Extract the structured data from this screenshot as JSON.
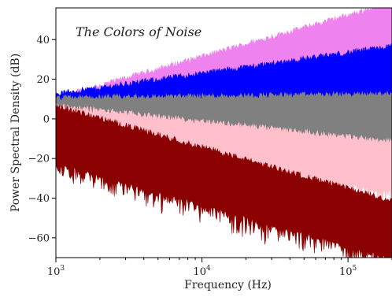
{
  "chart_data": {
    "type": "area",
    "title": "The Colors of Noise",
    "xlabel": "Frequency (Hz)",
    "ylabel": "Power Spectral Density (dB)",
    "x_scale": "log",
    "xlim": [
      1000,
      200000
    ],
    "ylim": [
      -70,
      56
    ],
    "grid": false,
    "x_ticks": [
      {
        "value": 1000,
        "base": "10",
        "exp": "3"
      },
      {
        "value": 10000,
        "base": "10",
        "exp": "4"
      },
      {
        "value": 100000,
        "base": "10",
        "exp": "5"
      }
    ],
    "y_ticks": [
      {
        "value": -60,
        "label": "−60"
      },
      {
        "value": -40,
        "label": "−40"
      },
      {
        "value": -20,
        "label": "−20"
      },
      {
        "value": 0,
        "label": "0"
      },
      {
        "value": 20,
        "label": "20"
      },
      {
        "value": 40,
        "label": "40"
      }
    ],
    "series": [
      {
        "color": "#ee82ee",
        "x": [
          1000,
          200000
        ],
        "upper": [
          10,
          58
        ],
        "lower": [
          -8,
          14
        ]
      },
      {
        "color": "#0000ff",
        "x": [
          1000,
          200000
        ],
        "upper": [
          12,
          36
        ],
        "lower": [
          -8,
          14
        ]
      },
      {
        "color": "#808080",
        "x": [
          1000,
          200000
        ],
        "upper": [
          10,
          12
        ],
        "lower": [
          -6,
          -12
        ]
      },
      {
        "color": "#ffc0cb",
        "x": [
          1000,
          200000
        ],
        "upper": [
          6,
          -12
        ],
        "lower": [
          -8,
          -36
        ]
      },
      {
        "color": "#8b0000",
        "x": [
          1000,
          200000
        ],
        "upper": [
          6,
          -42
        ],
        "lower": [
          -22,
          -70
        ]
      }
    ]
  }
}
